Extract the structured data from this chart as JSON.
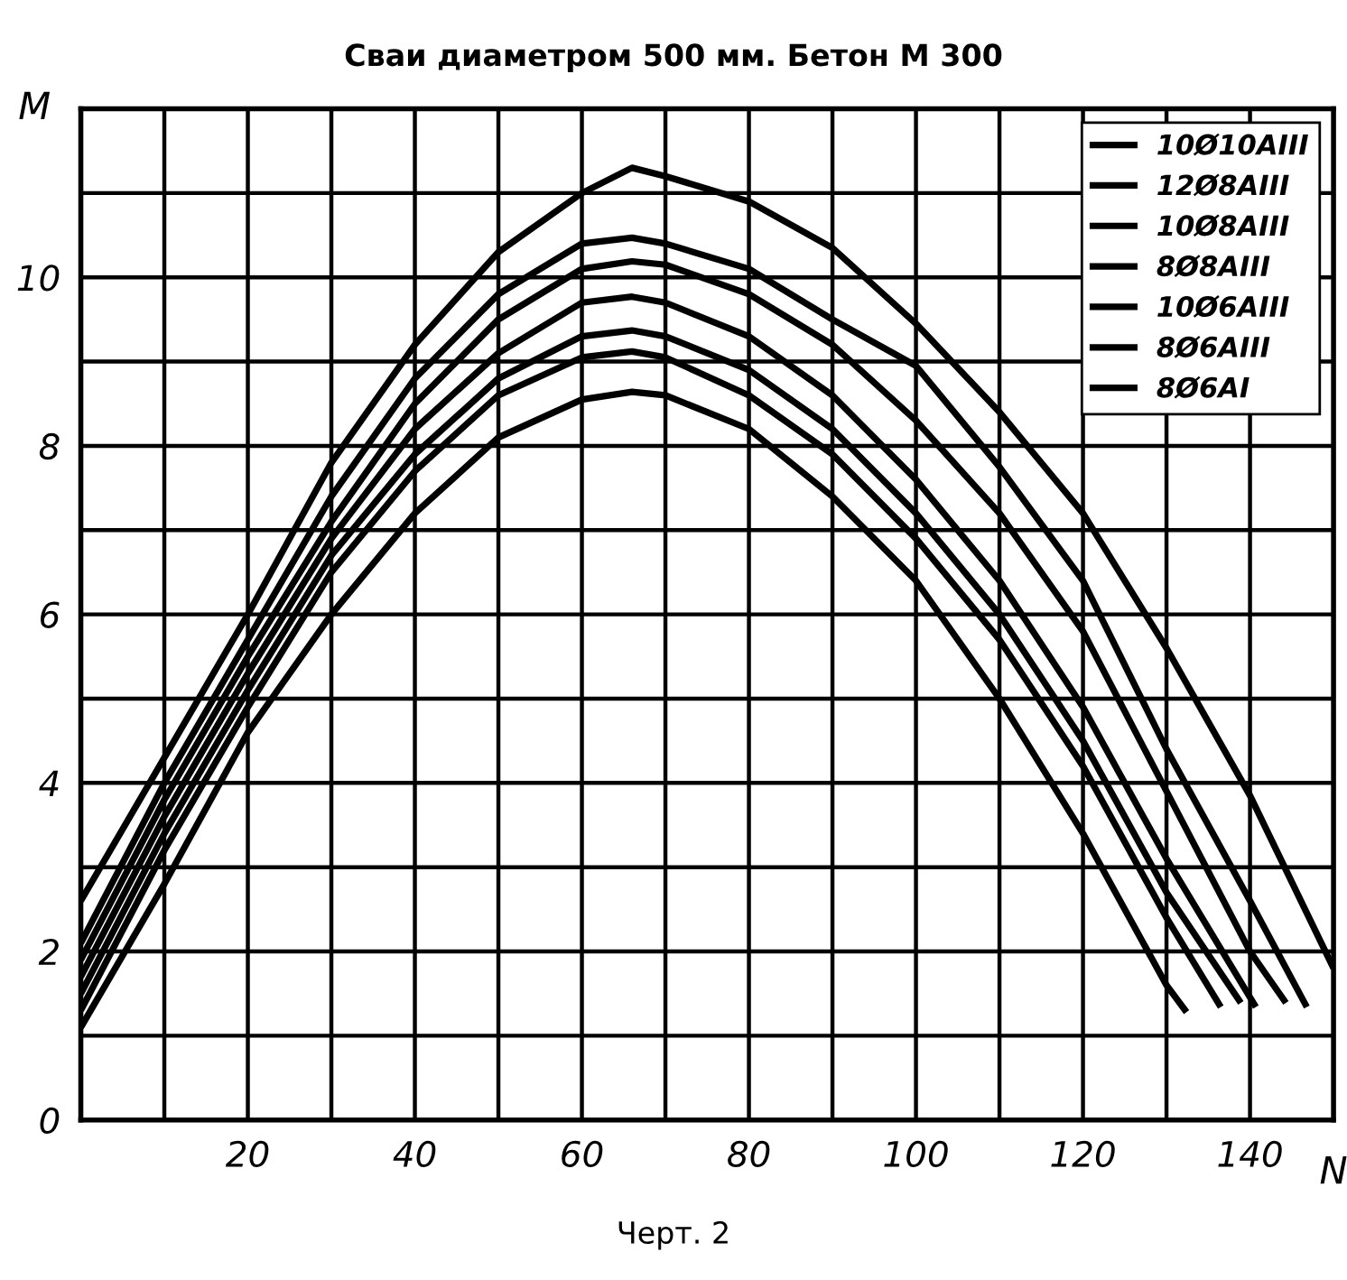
{
  "chart_data": {
    "type": "line",
    "title": "Сваи диаметром 500 мм. Бетон М 300",
    "xlabel": "N",
    "ylabel": "M",
    "annotations": [
      "Черт. 2"
    ],
    "xlim": [
      0,
      150
    ],
    "ylim": [
      0,
      12
    ],
    "xticks": [
      {
        "value": 10,
        "label": null
      },
      20,
      {
        "value": 30,
        "label": null
      },
      40,
      {
        "value": 50,
        "label": null
      },
      60,
      {
        "value": 70,
        "label": null
      },
      80,
      {
        "value": 90,
        "label": null
      },
      100,
      {
        "value": 110,
        "label": null
      },
      120,
      {
        "value": 130,
        "label": null
      },
      140
    ],
    "yticks": [
      0,
      {
        "value": 1,
        "label": null
      },
      2,
      {
        "value": 3,
        "label": null
      },
      4,
      {
        "value": 5,
        "label": null
      },
      6,
      {
        "value": 7,
        "label": null
      },
      8,
      {
        "value": 9,
        "label": null
      },
      10,
      {
        "value": 11,
        "label": null
      }
    ],
    "grid": true,
    "legend": "top right",
    "marker": "none",
    "line_style": "solid",
    "series": [
      {
        "name": "10Ø10AIII",
        "color": "#000000",
        "x": [
          0,
          10,
          20,
          30,
          40,
          50,
          60,
          66,
          70,
          80,
          90,
          100,
          110,
          120,
          130,
          140,
          150
        ],
        "values": [
          2.6,
          4.3,
          6.0,
          7.8,
          9.2,
          10.3,
          11.0,
          11.3,
          11.2,
          10.9,
          10.35,
          9.45,
          8.4,
          7.2,
          5.6,
          3.85,
          1.8
        ]
      },
      {
        "name": "12Ø8AIII",
        "color": "#000000",
        "x": [
          0,
          10,
          20,
          30,
          40,
          50,
          60,
          66,
          70,
          80,
          90,
          100,
          110,
          120,
          130,
          140,
          146.8
        ],
        "values": [
          2.1,
          4.0,
          5.7,
          7.4,
          8.8,
          9.8,
          10.4,
          10.47,
          10.4,
          10.1,
          9.5,
          8.95,
          7.75,
          6.4,
          4.4,
          2.6,
          1.34
        ]
      },
      {
        "name": "10Ø8AIII",
        "color": "#000000",
        "x": [
          0,
          10,
          20,
          30,
          40,
          50,
          60,
          66,
          70,
          80,
          90,
          100,
          110,
          120,
          130,
          140,
          144.3
        ],
        "values": [
          1.9,
          3.8,
          5.5,
          7.1,
          8.5,
          9.5,
          10.1,
          10.19,
          10.15,
          9.8,
          9.2,
          8.3,
          7.2,
          5.8,
          3.9,
          2.0,
          1.39
        ]
      },
      {
        "name": "8Ø8AIII",
        "color": "#000000",
        "x": [
          0,
          10,
          20,
          30,
          40,
          50,
          60,
          66,
          70,
          80,
          90,
          100,
          110,
          120,
          130,
          140.7
        ],
        "values": [
          1.7,
          3.6,
          5.3,
          6.9,
          8.2,
          9.1,
          9.7,
          9.77,
          9.7,
          9.3,
          8.6,
          7.6,
          6.4,
          4.9,
          3.1,
          1.34
        ]
      },
      {
        "name": "10Ø6AIII",
        "color": "#000000",
        "x": [
          0,
          10,
          20,
          30,
          40,
          50,
          60,
          66,
          70,
          80,
          90,
          100,
          110,
          120,
          130,
          138.9
        ],
        "values": [
          1.5,
          3.4,
          5.1,
          6.7,
          7.9,
          8.8,
          9.3,
          9.37,
          9.3,
          8.9,
          8.2,
          7.2,
          6.0,
          4.5,
          2.7,
          1.39
        ]
      },
      {
        "name": "8Ø6AIII",
        "color": "#000000",
        "x": [
          0,
          10,
          20,
          30,
          40,
          50,
          60,
          66,
          70,
          80,
          90,
          100,
          110,
          120,
          130,
          136.5
        ],
        "values": [
          1.3,
          3.2,
          4.9,
          6.5,
          7.7,
          8.6,
          9.05,
          9.12,
          9.05,
          8.6,
          7.9,
          6.9,
          5.7,
          4.2,
          2.4,
          1.34
        ]
      },
      {
        "name": "8Ø6AI",
        "color": "#000000",
        "x": [
          0,
          10,
          20,
          30,
          40,
          50,
          60,
          66,
          70,
          80,
          90,
          100,
          110,
          120,
          130,
          132.4
        ],
        "values": [
          1.1,
          2.8,
          4.6,
          6.0,
          7.2,
          8.1,
          8.55,
          8.64,
          8.6,
          8.2,
          7.4,
          6.4,
          5.0,
          3.4,
          1.6,
          1.28
        ]
      }
    ]
  }
}
